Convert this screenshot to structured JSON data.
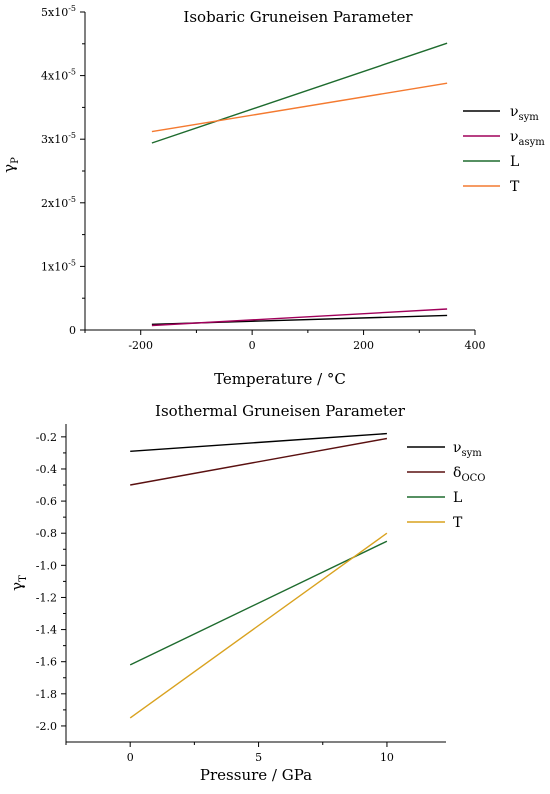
{
  "chart_data": [
    {
      "type": "line",
      "title": "Isobaric Gruneisen Parameter",
      "xlabel": "Temperature / °C",
      "ylabel": {
        "main": "γ",
        "sub": "P"
      },
      "xlim": [
        -300,
        400
      ],
      "ylim": [
        0,
        5e-05
      ],
      "xticks": [
        -200,
        0,
        200,
        400
      ],
      "xtick_labels": [
        "-200",
        "0",
        "200",
        "400"
      ],
      "yticks": [
        0,
        1e-05,
        2e-05,
        3e-05,
        4e-05,
        5e-05
      ],
      "ytick_labels": [
        {
          "main": "0",
          "exp": ""
        },
        {
          "main": "1x10",
          "exp": "-5"
        },
        {
          "main": "2x10",
          "exp": "-5"
        },
        {
          "main": "3x10",
          "exp": "-5"
        },
        {
          "main": "4x10",
          "exp": "-5"
        },
        {
          "main": "5x10",
          "exp": "-5"
        }
      ],
      "legend_position": "right",
      "series": [
        {
          "name": "ν",
          "sub": "sym",
          "color": "#000000",
          "x": [
            -180,
            350
          ],
          "y": [
            9e-07,
            2.3e-06
          ]
        },
        {
          "name": "ν",
          "sub": "asym",
          "color": "#a0005a",
          "x": [
            -180,
            350
          ],
          "y": [
            7e-07,
            3.3e-06
          ]
        },
        {
          "name": "L",
          "sub": "",
          "color": "#1e6b2e",
          "x": [
            -180,
            350
          ],
          "y": [
            2.94e-05,
            4.51e-05
          ]
        },
        {
          "name": "T",
          "sub": "",
          "color": "#f47a30",
          "x": [
            -180,
            350
          ],
          "y": [
            3.12e-05,
            3.88e-05
          ]
        }
      ]
    },
    {
      "type": "line",
      "title": "Isothermal Gruneisen Parameter",
      "xlabel": "Pressure / GPa",
      "ylabel": {
        "main": "γ",
        "sub": "T"
      },
      "xlim": [
        -2.5,
        12.3
      ],
      "ylim": [
        -2.1,
        -0.12
      ],
      "xticks": [
        0,
        5,
        10
      ],
      "xtick_labels": [
        "0",
        "5",
        "10"
      ],
      "yticks": [
        -2.0,
        -1.8,
        -1.6,
        -1.4,
        -1.2,
        -1.0,
        -0.8,
        -0.6,
        -0.4,
        -0.2
      ],
      "ytick_labels": [
        "-2.0",
        "-1.8",
        "-1.6",
        "-1.4",
        "-1.2",
        "-1.0",
        "-0.8",
        "-0.6",
        "-0.4",
        "-0.2"
      ],
      "legend_position": "right",
      "series": [
        {
          "name": "ν",
          "sub": "sym",
          "color": "#000000",
          "x": [
            0,
            10
          ],
          "y": [
            -0.29,
            -0.18
          ]
        },
        {
          "name": "δ",
          "sub": "OCO",
          "color": "#5a1010",
          "x": [
            0,
            10
          ],
          "y": [
            -0.5,
            -0.21
          ]
        },
        {
          "name": "L",
          "sub": "",
          "color": "#1e6b2e",
          "x": [
            0,
            10
          ],
          "y": [
            -1.62,
            -0.85
          ]
        },
        {
          "name": "T",
          "sub": "",
          "color": "#d9a21f",
          "x": [
            0,
            10
          ],
          "y": [
            -1.95,
            -0.8
          ]
        }
      ]
    }
  ]
}
